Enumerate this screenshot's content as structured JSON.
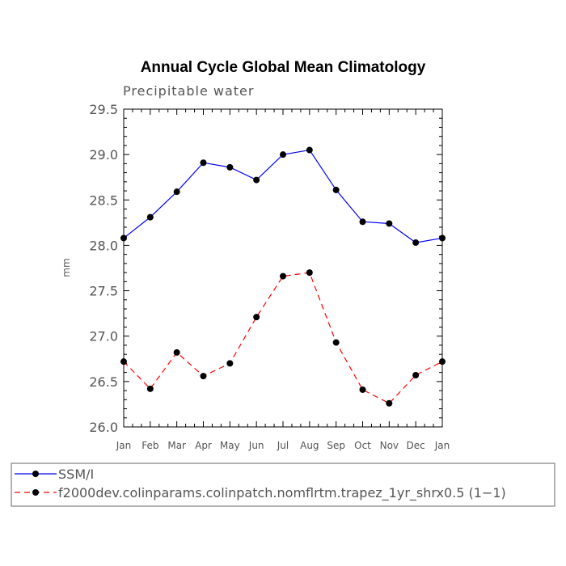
{
  "chart_data": {
    "type": "line",
    "title": "Annual Cycle Global Mean Climatology",
    "subtitle": "Precipitable water",
    "xlabel": "",
    "ylabel": "mm",
    "categories": [
      "Jan",
      "Feb",
      "Mar",
      "Apr",
      "May",
      "Jun",
      "Jul",
      "Aug",
      "Sep",
      "Oct",
      "Nov",
      "Dec",
      "Jan"
    ],
    "ylim": [
      26.0,
      29.5
    ],
    "yticks": [
      "26.0",
      "26.5",
      "27.0",
      "27.5",
      "28.0",
      "28.5",
      "29.0",
      "29.5"
    ],
    "series": [
      {
        "name": "SSM/I",
        "color": "#0000ff",
        "dash": "solid",
        "values": [
          28.08,
          28.31,
          28.59,
          28.91,
          28.86,
          28.72,
          29.0,
          29.05,
          28.61,
          28.26,
          28.24,
          28.03,
          28.08
        ]
      },
      {
        "name": "f2000dev.colinparams.colinpatch.nomflrtm.trapez_1yr_shrx0.5 (1−1)",
        "color": "#ff0000",
        "dash": "dashed",
        "values": [
          26.72,
          26.42,
          26.82,
          26.56,
          26.7,
          27.21,
          27.66,
          27.7,
          26.93,
          26.41,
          26.26,
          26.57,
          26.72
        ]
      }
    ]
  }
}
